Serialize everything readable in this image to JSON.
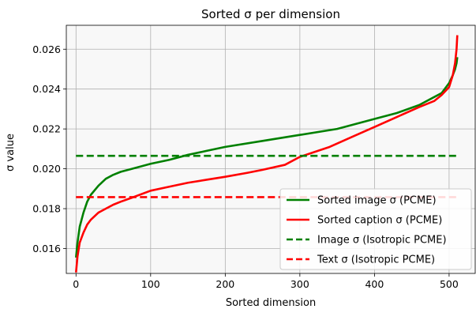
{
  "chart_data": {
    "type": "line",
    "title": "Sorted σ per dimension",
    "xlabel": "Sorted dimension",
    "ylabel": "σ value",
    "xlim": [
      -13,
      535
    ],
    "ylim": [
      0.01475,
      0.0272
    ],
    "xticks": [
      0,
      100,
      200,
      300,
      400,
      500
    ],
    "yticks": [
      0.016,
      0.018,
      0.02,
      0.022,
      0.024,
      0.026
    ],
    "ytick_labels": [
      "0.016",
      "0.018",
      "0.020",
      "0.022",
      "0.024",
      "0.026"
    ],
    "grid": true,
    "background": "#f8f8f8",
    "legend_position": "lower-right",
    "series": [
      {
        "name": "Sorted image σ (PCME)",
        "color": "#008000",
        "style": "solid",
        "x": [
          0,
          2,
          5,
          10,
          15,
          20,
          30,
          40,
          50,
          60,
          75,
          100,
          125,
          150,
          175,
          200,
          250,
          300,
          350,
          400,
          430,
          460,
          480,
          490,
          500,
          505,
          508,
          510,
          511
        ],
        "y": [
          0.01555,
          0.0163,
          0.0171,
          0.0178,
          0.01835,
          0.0187,
          0.01915,
          0.0195,
          0.0197,
          0.01985,
          0.02,
          0.02025,
          0.02045,
          0.0207,
          0.0209,
          0.0211,
          0.0214,
          0.0217,
          0.022,
          0.0225,
          0.0228,
          0.0232,
          0.0236,
          0.0238,
          0.0243,
          0.0247,
          0.025,
          0.0253,
          0.0256
        ]
      },
      {
        "name": "Sorted caption σ (PCME)",
        "color": "#ff0000",
        "style": "solid",
        "x": [
          0,
          2,
          5,
          10,
          15,
          20,
          30,
          40,
          50,
          60,
          75,
          100,
          125,
          150,
          175,
          200,
          230,
          250,
          280,
          300,
          340,
          370,
          400,
          430,
          460,
          480,
          490,
          500,
          505,
          508,
          510,
          511
        ],
        "y": [
          0.0148,
          0.0156,
          0.0163,
          0.0168,
          0.0172,
          0.01745,
          0.0178,
          0.018,
          0.0182,
          0.01835,
          0.01855,
          0.0189,
          0.0191,
          0.0193,
          0.01945,
          0.0196,
          0.0198,
          0.01995,
          0.0202,
          0.0206,
          0.0211,
          0.0216,
          0.0221,
          0.0226,
          0.0231,
          0.0234,
          0.0237,
          0.0241,
          0.0247,
          0.0253,
          0.026,
          0.0267
        ]
      },
      {
        "name": "Image σ (Isotropic PCME)",
        "color": "#008000",
        "style": "dashed",
        "x": [
          0,
          511
        ],
        "y": [
          0.02065,
          0.02065
        ]
      },
      {
        "name": "Text σ (Isotropic PCME)",
        "color": "#ff0000",
        "style": "dashed",
        "x": [
          0,
          511
        ],
        "y": [
          0.01858,
          0.01858
        ]
      }
    ]
  }
}
